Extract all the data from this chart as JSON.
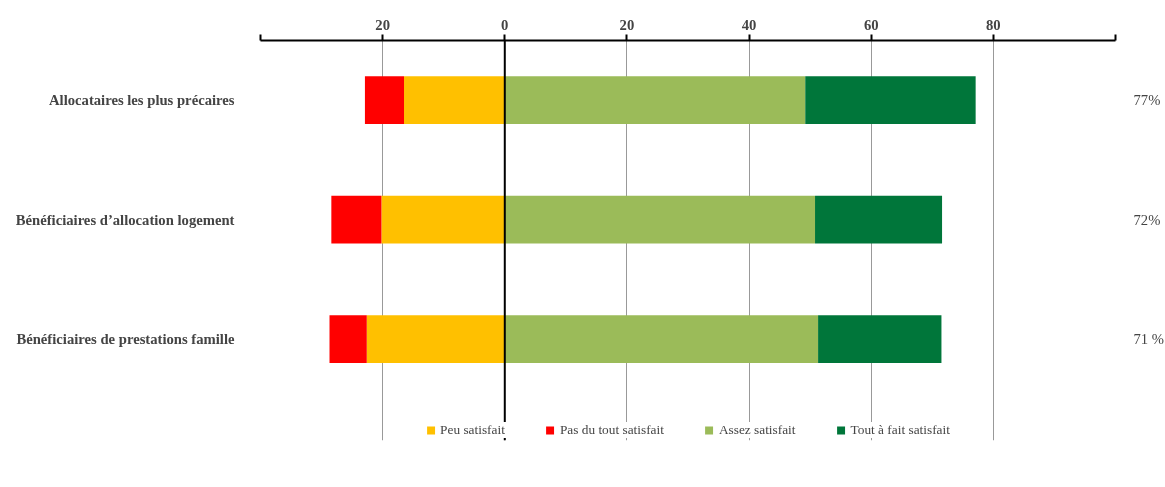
{
  "chart_data": {
    "type": "bar",
    "orientation": "horizontal",
    "stacked": true,
    "categories": [
      "Allocataires les plus précaires",
      "Bénéficiaires d’allocation logement",
      "Bénéficiaires de prestations famille"
    ],
    "series": [
      {
        "name": "Peu satisfait",
        "color": "#ffc000",
        "values": [
          -16.5,
          -20.2,
          -22.6
        ]
      },
      {
        "name": "Pas du tout satisfait",
        "color": "#ff0000",
        "values": [
          -6.4,
          -8.2,
          -6.1
        ]
      },
      {
        "name": "Assez satisfait",
        "color": "#9bbb59",
        "values": [
          49.2,
          50.8,
          51.3
        ]
      },
      {
        "name": "Tout à fait satisfait",
        "color": "#00763a",
        "values": [
          27.9,
          20.8,
          20.2
        ]
      }
    ],
    "annotations": [
      "77%",
      "72%",
      "71 %"
    ],
    "xlim": [
      -40,
      100
    ],
    "xticks": [
      {
        "value": -40,
        "label": null
      },
      {
        "value": -20,
        "label": "20"
      },
      0,
      20,
      40,
      60,
      80,
      {
        "value": 100,
        "label": null
      }
    ],
    "grid": "x",
    "legend": "bottom"
  }
}
